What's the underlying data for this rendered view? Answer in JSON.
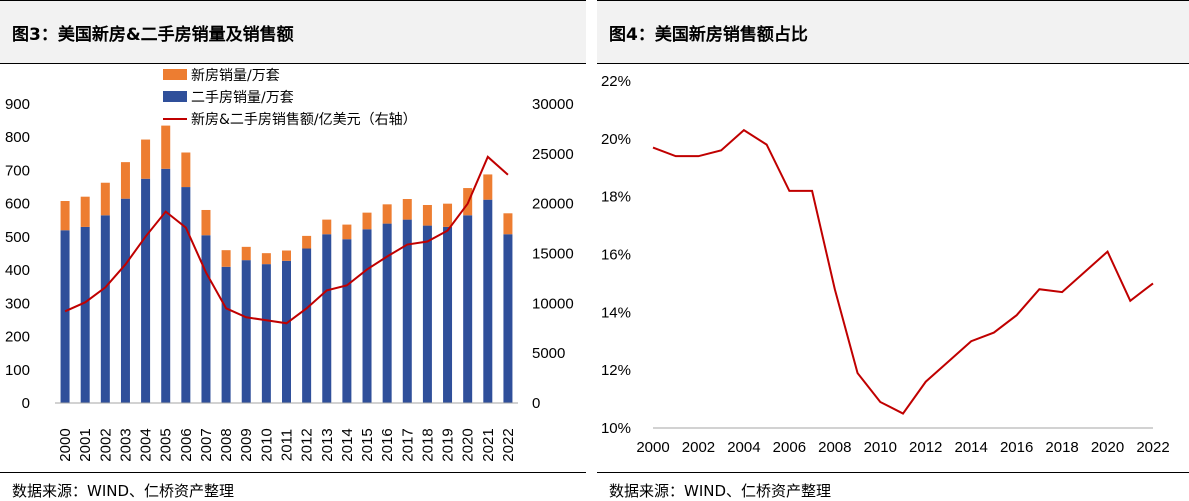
{
  "left_panel": {
    "title": "图3：美国新房&二手房销量及销售额",
    "source": "数据来源：WIND、仁桥资产整理"
  },
  "right_panel": {
    "title": "图4：美国新房销售额占比",
    "source": "数据来源：WIND、仁桥资产整理"
  },
  "colors": {
    "new_home": "#ed7d31",
    "existing_home": "#2f4f9a",
    "line": "#c00000"
  },
  "chart_data": [
    {
      "type": "bar",
      "stacked": true,
      "categories": [
        "2000",
        "2001",
        "2002",
        "2003",
        "2004",
        "2005",
        "2006",
        "2007",
        "2008",
        "2009",
        "2010",
        "2011",
        "2012",
        "2013",
        "2014",
        "2015",
        "2016",
        "2017",
        "2018",
        "2019",
        "2020",
        "2021",
        "2022"
      ],
      "series": [
        {
          "name": "二手房销量/万套",
          "type": "bar",
          "axis": "left",
          "values": [
            520,
            530,
            565,
            615,
            675,
            705,
            650,
            505,
            410,
            430,
            418,
            428,
            465,
            508,
            493,
            523,
            540,
            552,
            534,
            530,
            565,
            612,
            508
          ]
        },
        {
          "name": "新房销量/万套",
          "type": "bar",
          "axis": "left",
          "values": [
            88,
            91,
            98,
            110,
            118,
            130,
            104,
            76,
            50,
            40,
            33,
            31,
            38,
            44,
            44,
            50,
            58,
            62,
            62,
            70,
            82,
            76,
            63
          ]
        },
        {
          "name": "新房&二手房销售额/亿美元（右轴）",
          "type": "line",
          "axis": "right",
          "values": [
            9200,
            10100,
            11600,
            13900,
            16700,
            19200,
            17600,
            13100,
            9500,
            8600,
            8300,
            8000,
            9500,
            11300,
            11800,
            13400,
            14700,
            15900,
            16200,
            17300,
            20000,
            24700,
            22900
          ]
        }
      ],
      "ylim": [
        0,
        900
      ],
      "yticks": [
        0,
        100,
        200,
        300,
        400,
        500,
        600,
        700,
        800,
        900
      ],
      "y2lim": [
        0,
        30000
      ],
      "y2ticks": [
        0,
        5000,
        10000,
        15000,
        20000,
        25000,
        30000
      ],
      "legend_position": "top-center",
      "grid": false
    },
    {
      "type": "line",
      "x": [
        2000,
        2001,
        2002,
        2003,
        2004,
        2005,
        2006,
        2007,
        2008,
        2009,
        2010,
        2011,
        2012,
        2013,
        2014,
        2015,
        2016,
        2017,
        2018,
        2019,
        2020,
        2021,
        2022
      ],
      "series": [
        {
          "values": [
            19.7,
            19.4,
            19.4,
            19.6,
            20.3,
            19.8,
            18.2,
            18.2,
            14.8,
            11.9,
            10.9,
            10.5,
            11.6,
            12.3,
            13.0,
            13.3,
            13.9,
            14.8,
            14.7,
            15.4,
            16.1,
            14.4,
            15.0
          ]
        }
      ],
      "xlim": [
        2000,
        2022
      ],
      "xticks": [
        2000,
        2002,
        2004,
        2006,
        2008,
        2010,
        2012,
        2014,
        2016,
        2018,
        2020,
        2022
      ],
      "ylim": [
        10,
        22
      ],
      "yticks": [
        "10%",
        "12%",
        "14%",
        "16%",
        "18%",
        "20%",
        "22%"
      ],
      "grid": false
    }
  ]
}
